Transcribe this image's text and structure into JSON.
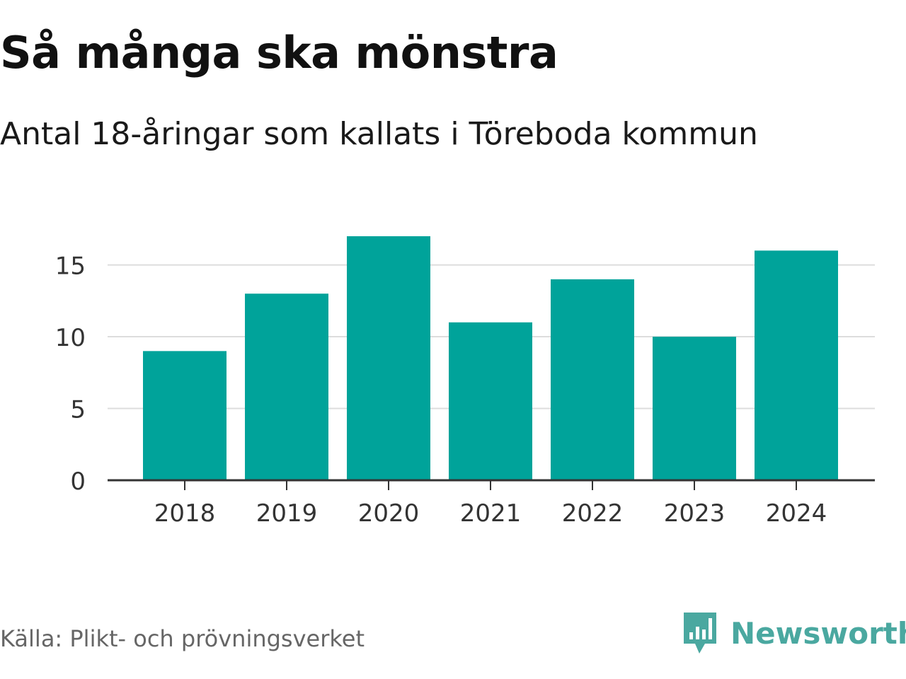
{
  "chart_data": {
    "type": "bar",
    "title": "Så många ska mönstra",
    "subtitle": "Antal 18-åringar som kallats i Töreboda kommun",
    "categories": [
      "2018",
      "2019",
      "2020",
      "2021",
      "2022",
      "2023",
      "2024"
    ],
    "values": [
      9,
      13,
      17,
      11,
      14,
      10,
      16
    ],
    "yticks": [
      "0",
      "5",
      "10",
      "15"
    ],
    "ylim": [
      0,
      17
    ],
    "grid": true,
    "bar_color": "#00a39a"
  },
  "footer": {
    "source": "Källa: Plikt- och prövningsverket",
    "brand": "Newsworthy",
    "brand_icon": "bar-chart-bubble-icon"
  },
  "colors": {
    "bar": "#00a39a",
    "brand": "#4aa8a0",
    "grid": "#dddddd",
    "axis": "#333333"
  }
}
